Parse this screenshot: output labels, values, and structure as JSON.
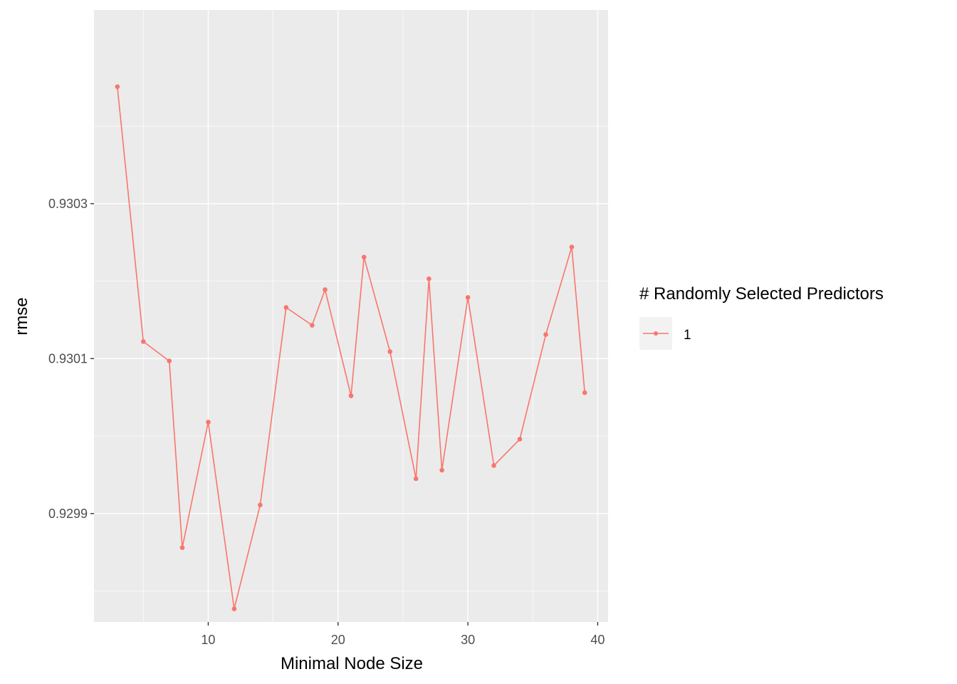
{
  "chart_data": {
    "type": "line",
    "title": "",
    "xlabel": "Minimal Node Size",
    "ylabel": "rmse",
    "xlim": [
      1.2,
      40.8
    ],
    "ylim": [
      0.92976,
      0.93055
    ],
    "x_ticks": [
      10,
      20,
      30,
      40
    ],
    "x_tick_labels": [
      "10",
      "20",
      "30",
      "40"
    ],
    "y_ticks": [
      0.9299,
      0.9301,
      0.9303
    ],
    "y_tick_labels": [
      "0.9299",
      "0.9301",
      "0.9303"
    ],
    "grid": true,
    "legend": {
      "title": "# Randomly Selected Predictors",
      "position": "right",
      "entries": [
        "1"
      ]
    },
    "series": [
      {
        "name": "1",
        "color": "#F8766D",
        "x": [
          3,
          5,
          7,
          8,
          10,
          12,
          14,
          16,
          18,
          19,
          21,
          22,
          24,
          26,
          27,
          28,
          30,
          32,
          34,
          36,
          38,
          39
        ],
        "values": [
          0.930451,
          0.930122,
          0.930097,
          0.929856,
          0.930018,
          0.929777,
          0.929911,
          0.930166,
          0.930143,
          0.930189,
          0.930052,
          0.930231,
          0.930109,
          0.929945,
          0.930203,
          0.929956,
          0.930179,
          0.929962,
          0.929996,
          0.930131,
          0.930244,
          0.930056
        ]
      }
    ]
  },
  "colors": {
    "panel_background": "#EBEBEB",
    "grid_major": "#FFFFFF",
    "series_1": "#F8766D",
    "legend_key_background": "#F2F2F2"
  }
}
